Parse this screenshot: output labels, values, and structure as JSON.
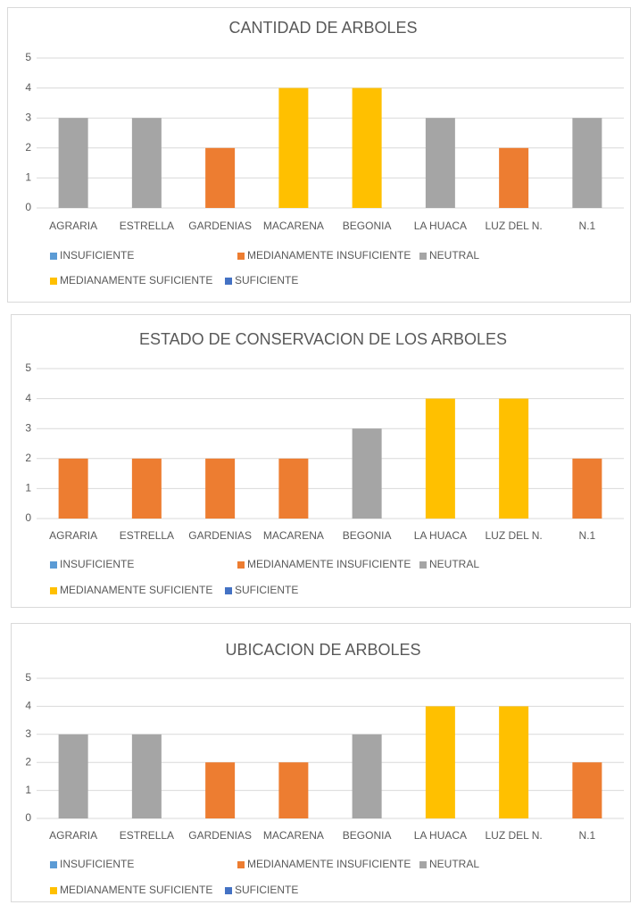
{
  "chart_data": [
    {
      "type": "bar",
      "title": "CANTIDAD DE ARBOLES",
      "categories": [
        "AGRARIA",
        "ESTRELLA",
        "GARDENIAS",
        "MACARENA",
        "BEGONIA",
        "LA HUACA",
        "LUZ DEL N.",
        "N.1"
      ],
      "series": [
        {
          "name": "INSUFICIENTE",
          "color": "#5b9bd5",
          "values": [
            null,
            null,
            null,
            null,
            null,
            null,
            null,
            null
          ]
        },
        {
          "name": "MEDIANAMENTE INSUFICIENTE",
          "color": "#ed7d31",
          "values": [
            null,
            null,
            2,
            null,
            null,
            null,
            2,
            null
          ]
        },
        {
          "name": "NEUTRAL",
          "color": "#a5a5a5",
          "values": [
            3,
            3,
            null,
            null,
            null,
            3,
            null,
            3
          ]
        },
        {
          "name": "MEDIANAMENTE SUFICIENTE",
          "color": "#ffc000",
          "values": [
            null,
            null,
            null,
            4,
            4,
            null,
            null,
            null
          ]
        },
        {
          "name": "SUFICIENTE",
          "color": "#4472c4",
          "values": [
            null,
            null,
            null,
            null,
            null,
            null,
            null,
            null
          ]
        }
      ],
      "ylim": [
        0,
        5
      ],
      "yticks": [
        0,
        1,
        2,
        3,
        4,
        5
      ],
      "grid": true,
      "legend": "bottom"
    },
    {
      "type": "bar",
      "title": "ESTADO DE CONSERVACION DE LOS ARBOLES",
      "categories": [
        "AGRARIA",
        "ESTRELLA",
        "GARDENIAS",
        "MACARENA",
        "BEGONIA",
        "LA HUACA",
        "LUZ DEL N.",
        "N.1"
      ],
      "series": [
        {
          "name": "INSUFICIENTE",
          "color": "#5b9bd5",
          "values": [
            null,
            null,
            null,
            null,
            null,
            null,
            null,
            null
          ]
        },
        {
          "name": "MEDIANAMENTE INSUFICIENTE",
          "color": "#ed7d31",
          "values": [
            2,
            2,
            2,
            2,
            null,
            null,
            null,
            2
          ]
        },
        {
          "name": "NEUTRAL",
          "color": "#a5a5a5",
          "values": [
            null,
            null,
            null,
            null,
            3,
            null,
            null,
            null
          ]
        },
        {
          "name": "MEDIANAMENTE SUFICIENTE",
          "color": "#ffc000",
          "values": [
            null,
            null,
            null,
            null,
            null,
            4,
            4,
            null
          ]
        },
        {
          "name": "SUFICIENTE",
          "color": "#4472c4",
          "values": [
            null,
            null,
            null,
            null,
            null,
            null,
            null,
            null
          ]
        }
      ],
      "ylim": [
        0,
        5
      ],
      "yticks": [
        0,
        1,
        2,
        3,
        4,
        5
      ],
      "grid": true,
      "legend": "bottom"
    },
    {
      "type": "bar",
      "title": "UBICACION DE ARBOLES",
      "categories": [
        "AGRARIA",
        "ESTRELLA",
        "GARDENIAS",
        "MACARENA",
        "BEGONIA",
        "LA HUACA",
        "LUZ DEL N.",
        "N.1"
      ],
      "series": [
        {
          "name": "INSUFICIENTE",
          "color": "#5b9bd5",
          "values": [
            null,
            null,
            null,
            null,
            null,
            null,
            null,
            null
          ]
        },
        {
          "name": "MEDIANAMENTE INSUFICIENTE",
          "color": "#ed7d31",
          "values": [
            null,
            null,
            2,
            2,
            null,
            null,
            null,
            2
          ]
        },
        {
          "name": "NEUTRAL",
          "color": "#a5a5a5",
          "values": [
            3,
            3,
            null,
            null,
            3,
            null,
            null,
            null
          ]
        },
        {
          "name": "MEDIANAMENTE SUFICIENTE",
          "color": "#ffc000",
          "values": [
            null,
            null,
            null,
            null,
            null,
            4,
            4,
            null
          ]
        },
        {
          "name": "SUFICIENTE",
          "color": "#4472c4",
          "values": [
            null,
            null,
            null,
            null,
            null,
            null,
            null,
            null
          ]
        }
      ],
      "ylim": [
        0,
        5
      ],
      "yticks": [
        0,
        1,
        2,
        3,
        4,
        5
      ],
      "grid": true,
      "legend": "bottom"
    }
  ]
}
